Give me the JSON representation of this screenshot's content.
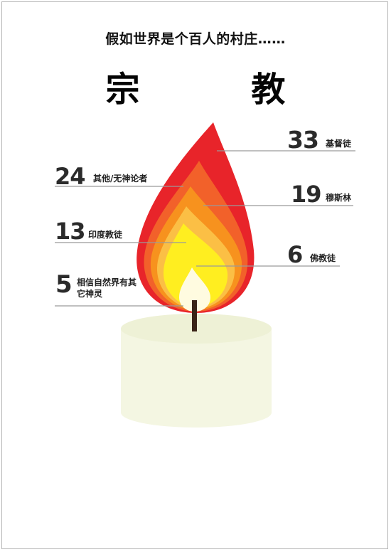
{
  "title": "假如世界是个百人的村庄……",
  "heading": "宗 教",
  "colors": {
    "flame_outer": "#e8242a",
    "flame_2": "#f2612a",
    "flame_3": "#f7921e",
    "flame_4": "#fbbf45",
    "flame_5": "#ffee20",
    "flame_core": "#fffbe0",
    "candle": "#f4f6e2",
    "wick": "#3a2418",
    "leader": "#9a9a9a"
  },
  "chart_data": {
    "type": "other",
    "unit": "people per 100",
    "items": [
      {
        "value": 33,
        "label": "基督徒"
      },
      {
        "value": 24,
        "label": "其他/无神论者"
      },
      {
        "value": 19,
        "label": "穆斯林"
      },
      {
        "value": 13,
        "label": "印度教徒"
      },
      {
        "value": 6,
        "label": "佛教徒"
      },
      {
        "value": 5,
        "label": "相信自然界有其它神灵"
      }
    ]
  }
}
